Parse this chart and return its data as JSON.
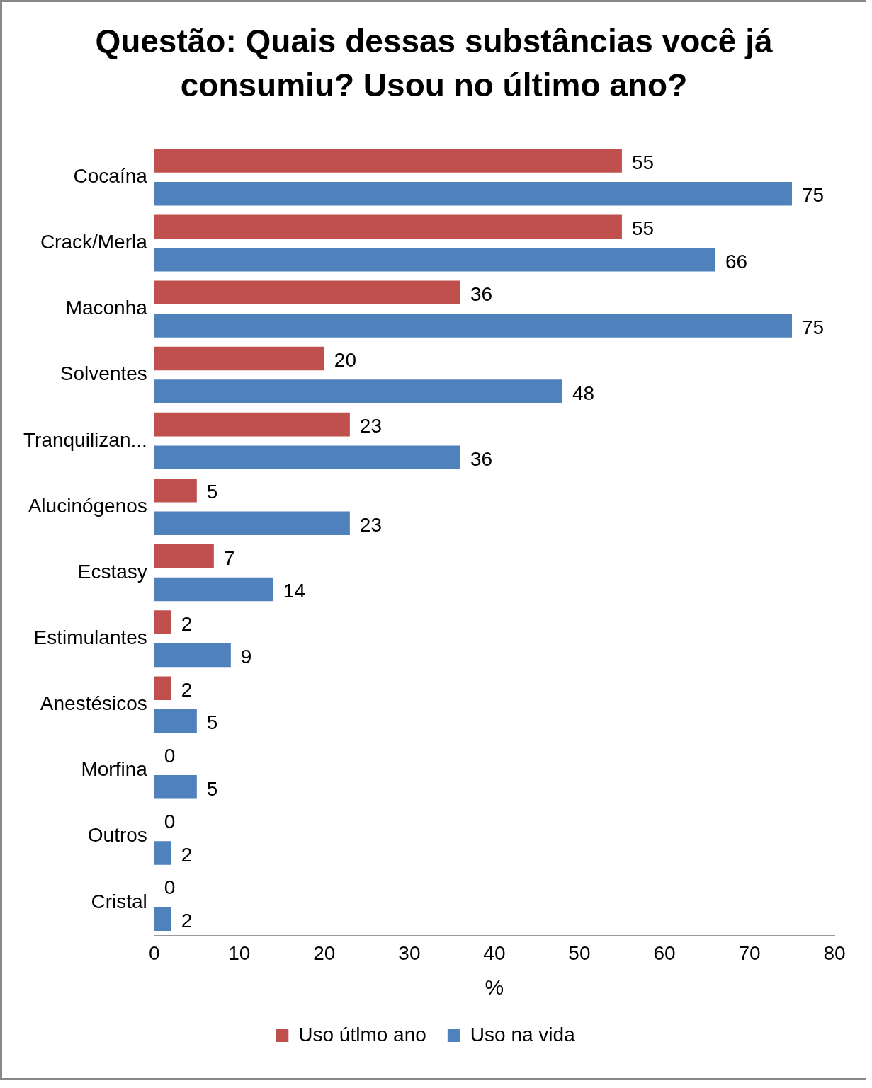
{
  "chart_data": {
    "type": "bar",
    "orientation": "horizontal",
    "title": "Questão: Quais dessas substâncias você já consumiu? Usou no último ano?",
    "xlabel": "%",
    "categories": [
      "Cocaína",
      "Crack/Merla",
      "Maconha",
      "Solventes",
      "Tranquilizan...",
      "Alucinógenos",
      "Ecstasy",
      "Estimulantes",
      "Anestésicos",
      "Morfina",
      "Outros",
      "Cristal"
    ],
    "series": [
      {
        "name": "Uso útlmo ano",
        "color": "#c0504d",
        "values": [
          55,
          55,
          36,
          20,
          23,
          5,
          7,
          2,
          2,
          0,
          0,
          0
        ]
      },
      {
        "name": "Uso na vida",
        "color": "#4f81bd",
        "values": [
          75,
          66,
          75,
          48,
          36,
          23,
          14,
          9,
          5,
          5,
          2,
          2
        ]
      }
    ],
    "xlim": [
      0,
      80
    ],
    "xticks": [
      0,
      10,
      20,
      30,
      40,
      50,
      60,
      70,
      80
    ],
    "grid": false,
    "legend": "bottom",
    "data_labels": true
  }
}
